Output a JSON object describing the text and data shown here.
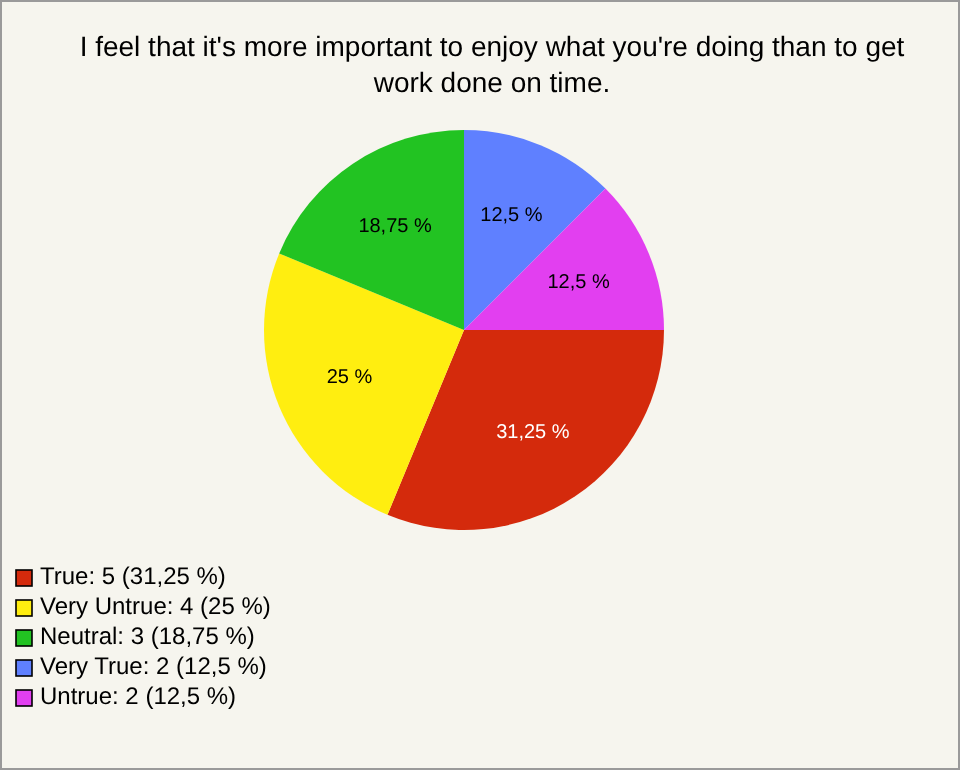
{
  "chart_data": {
    "type": "pie",
    "title": "I feel that it's more important to enjoy what you're doing than to get work done on time.",
    "categories": [
      "True: 5 (31,25 %)",
      "Very Untrue: 4 (25 %)",
      "Neutral: 3 (18,75 %)",
      "Very True: 2 (12,5 %)",
      "Untrue: 2 (12,5 %)"
    ],
    "values": [
      31.25,
      25,
      18.75,
      12.5,
      12.5
    ],
    "value_labels": [
      "31,25 %",
      "25 %",
      "18,75 %",
      "12,5 %",
      "12,5 %"
    ],
    "colors": [
      "#d42a0c",
      "#ffee10",
      "#22c322",
      "#5f80ff",
      "#e23ff0"
    ],
    "legend": "bottom left"
  }
}
